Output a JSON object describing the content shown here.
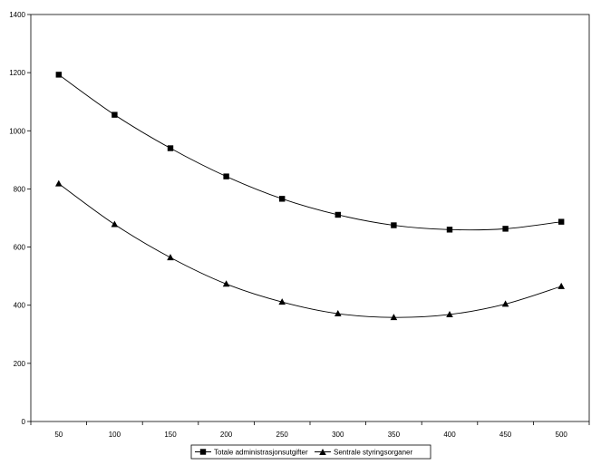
{
  "chart_data": {
    "type": "line",
    "title": "",
    "xlabel": "",
    "ylabel": "",
    "x": [
      50,
      100,
      150,
      200,
      250,
      300,
      350,
      400,
      450,
      500
    ],
    "xticks": [
      "50",
      "100",
      "150",
      "200",
      "250",
      "300",
      "350",
      "400",
      "450",
      "500"
    ],
    "ylim": [
      0,
      1400
    ],
    "yticks": [
      "0",
      "200",
      "400",
      "600",
      "800",
      "1000",
      "1200",
      "1400"
    ],
    "grid": false,
    "legend_position": "bottom",
    "series": [
      {
        "name": "Totale administrasjonsutgifter",
        "marker": "square",
        "color": "#000000",
        "values": [
          1193,
          1055,
          940,
          843,
          766,
          711,
          675,
          660,
          663,
          687
        ]
      },
      {
        "name": "Sentrale styringsorganer",
        "marker": "triangle",
        "color": "#000000",
        "values": [
          818,
          678,
          564,
          473,
          411,
          371,
          358,
          368,
          404,
          465
        ]
      }
    ]
  }
}
